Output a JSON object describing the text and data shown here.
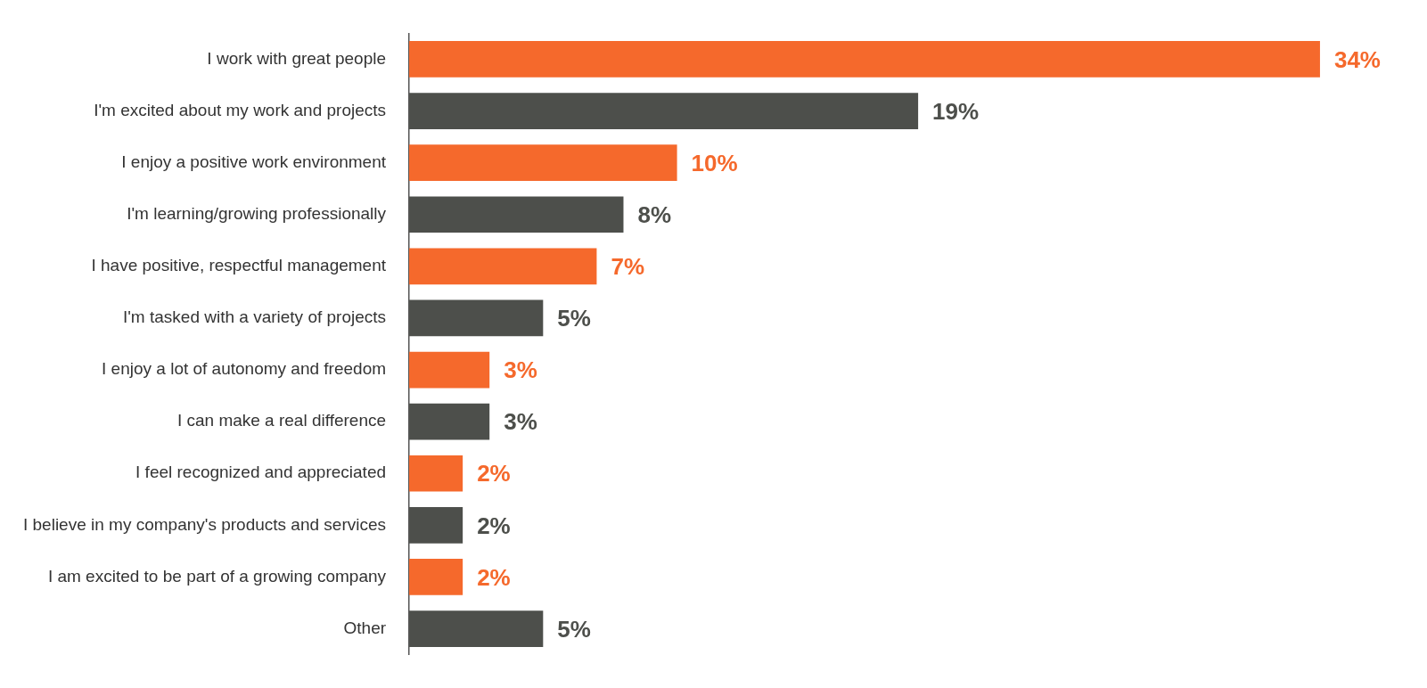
{
  "chart_data": {
    "type": "bar",
    "orientation": "horizontal",
    "categories": [
      "I work with great people",
      "I'm excited about my work and projects",
      "I enjoy a positive work environment",
      "I'm learning/growing professionally",
      "I have positive, respectful management",
      "I'm tasked with a variety of projects",
      "I enjoy a lot of autonomy and freedom",
      "I can make a real difference",
      "I feel recognized and appreciated",
      "I believe in my company's products and services",
      "I am excited to be part of a growing company",
      "Other"
    ],
    "values": [
      34,
      19,
      10,
      8,
      7,
      5,
      3,
      3,
      2,
      2,
      2,
      5
    ],
    "colors": [
      "#f5692c",
      "#4d4f4b",
      "#f5692c",
      "#4d4f4b",
      "#f5692c",
      "#4d4f4b",
      "#f5692c",
      "#4d4f4b",
      "#f5692c",
      "#4d4f4b",
      "#f5692c",
      "#4d4f4b"
    ],
    "value_labels": [
      "34%",
      "19%",
      "10%",
      "8%",
      "7%",
      "5%",
      "3%",
      "3%",
      "2%",
      "2%",
      "2%",
      "5%"
    ],
    "grid": false,
    "legend": false
  }
}
